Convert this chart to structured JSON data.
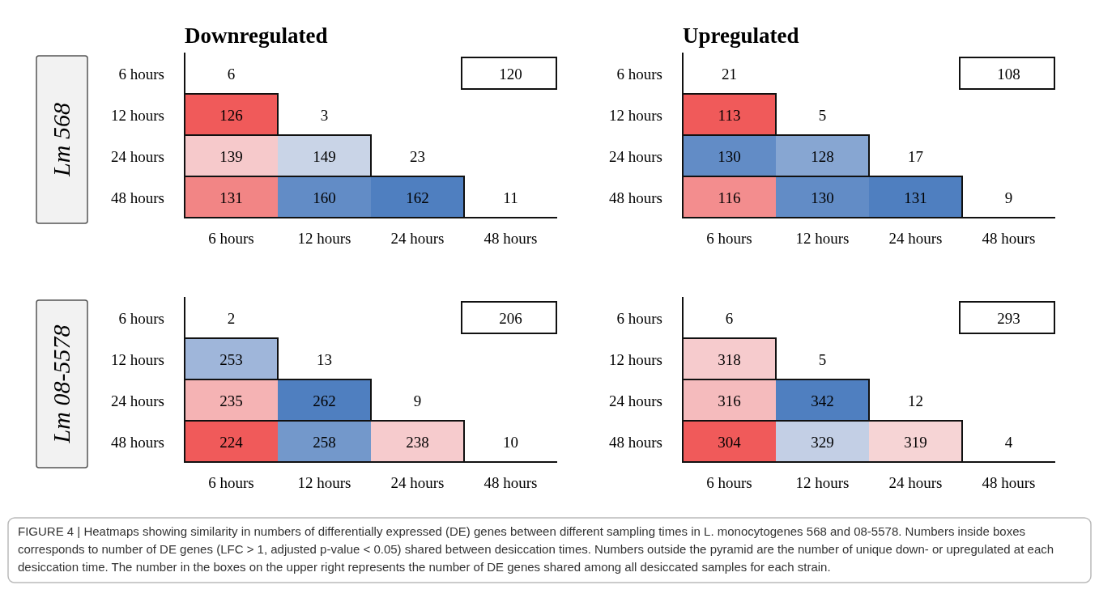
{
  "chart_data": [
    {
      "type": "heatmap",
      "title": "Downregulated",
      "ylabel": "Lm 568",
      "categories": [
        "6 hours",
        "12 hours",
        "24 hours",
        "48 hours"
      ],
      "y_categories": [
        "6 hours",
        "12 hours",
        "24 hours",
        "48 hours"
      ],
      "cells": [
        [
          6,
          null,
          null,
          120
        ],
        [
          126,
          3,
          null,
          null
        ],
        [
          139,
          149,
          23,
          null
        ],
        [
          131,
          160,
          162,
          11
        ]
      ],
      "data_labels": true,
      "annotations": [
        "FIGURE 4 | Heatmaps showing similarity in numbers of differentially expressed (DE) genes between different sampling times in L. monocytogenes 568 and 08-5578. Numbers inside boxes corresponds to number of DE genes (LFC > 1, adjusted p-value < 0.05) shared between desiccation times. Numbers outside the pyramid are the number of unique down- or upregulated at each desiccation time. The number in the boxes on the upper right represents the number of DE genes shared among all desiccated samples for each strain."
      ]
    },
    {
      "type": "heatmap",
      "title": "Upregulated",
      "categories": [
        "6 hours",
        "12 hours",
        "24 hours",
        "48 hours"
      ],
      "y_categories": [
        "6 hours",
        "12 hours",
        "24 hours",
        "48 hours"
      ],
      "cells": [
        [
          21,
          null,
          null,
          108
        ],
        [
          113,
          5,
          null,
          null
        ],
        [
          130,
          128,
          17,
          null
        ],
        [
          116,
          130,
          131,
          9
        ]
      ],
      "data_labels": true
    },
    {
      "type": "heatmap",
      "ylabel": "Lm 08-5578",
      "categories": [
        "6 hours",
        "12 hours",
        "24 hours",
        "48 hours"
      ],
      "y_categories": [
        "6 hours",
        "12 hours",
        "24 hours",
        "48 hours"
      ],
      "cells": [
        [
          2,
          null,
          null,
          206
        ],
        [
          253,
          13,
          null,
          null
        ],
        [
          235,
          262,
          9,
          null
        ],
        [
          224,
          258,
          238,
          10
        ]
      ],
      "data_labels": true
    },
    {
      "type": "heatmap",
      "categories": [
        "6 hours",
        "12 hours",
        "24 hours",
        "48 hours"
      ],
      "y_categories": [
        "6 hours",
        "12 hours",
        "24 hours",
        "48 hours"
      ],
      "cells": [
        [
          6,
          null,
          null,
          293
        ],
        [
          318,
          5,
          null,
          null
        ],
        [
          316,
          342,
          12,
          null
        ],
        [
          304,
          329,
          319,
          4
        ]
      ],
      "data_labels": true
    }
  ]
}
